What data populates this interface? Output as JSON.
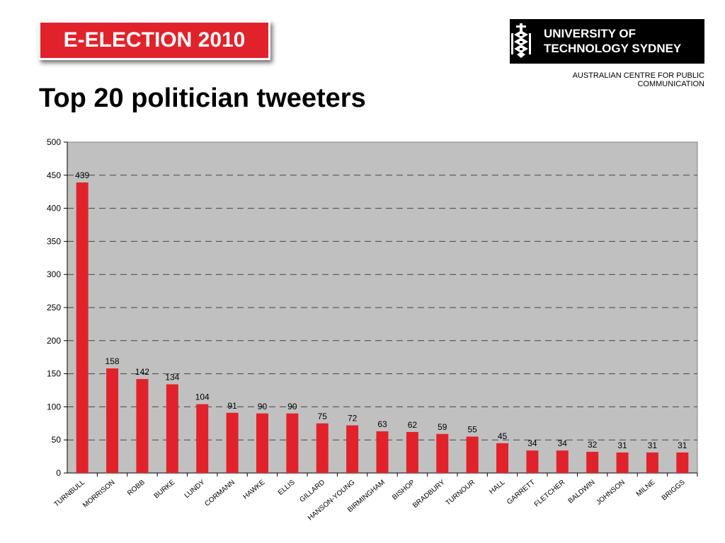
{
  "header": {
    "badge": "E-ELECTION 2010",
    "title": "Top 20 politician tweeters",
    "logo_line1": "UNIVERSITY OF",
    "logo_line2": "TECHNOLOGY SYDNEY",
    "subtitle": "AUSTRALIAN CENTRE FOR PUBLIC COMMUNICATION"
  },
  "colors": {
    "badge": "#e2222b",
    "bar": "#e2222b",
    "plot_background": "#c0c0c0"
  },
  "chart_data": {
    "type": "bar",
    "categories": [
      "TURNBULL",
      "MORRISON",
      "ROBB",
      "BURKE",
      "LUNDY",
      "CORMANN",
      "HAWKE",
      "ELLIS",
      "GILLARD",
      "HANSON-YOUNG",
      "BIRMINGHAM",
      "BISHOP",
      "BRADBURY",
      "TURNOUR",
      "HALL",
      "GARRETT",
      "FLETCHER",
      "BALDWIN",
      "JOHNSON",
      "MILNE",
      "BRIGGS"
    ],
    "values": [
      439,
      158,
      142,
      134,
      104,
      91,
      90,
      90,
      75,
      72,
      63,
      62,
      59,
      55,
      45,
      34,
      34,
      32,
      31,
      31,
      31
    ],
    "ylim": [
      0,
      500
    ],
    "yticks": [
      0,
      50,
      100,
      150,
      200,
      250,
      300,
      350,
      400,
      450,
      500
    ],
    "grid": true,
    "legend": "none"
  }
}
